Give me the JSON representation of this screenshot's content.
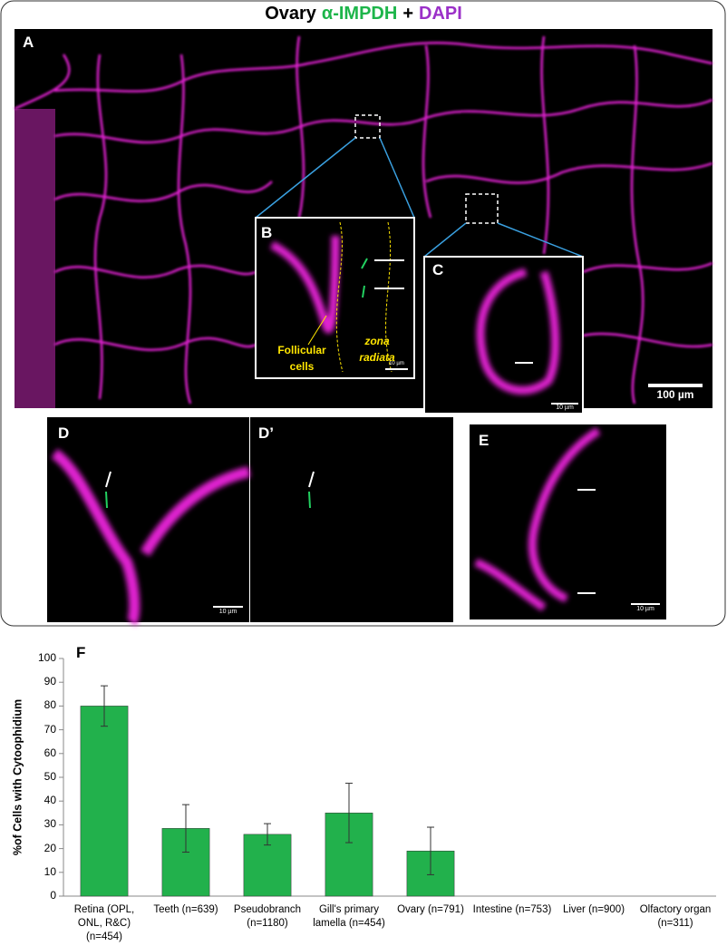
{
  "figure": {
    "title": {
      "parts": [
        "Ovary",
        "α-IMPDH",
        "+",
        "DAPI"
      ],
      "colors": [
        "#000000",
        "#1db54a",
        "#000000",
        "#9b30c8"
      ]
    },
    "panels": {
      "A": {
        "label": "A",
        "scale_bar": "100 µm"
      },
      "B": {
        "label": "B",
        "scale_bar": "10 µm"
      },
      "C": {
        "label": "C",
        "scale_bar": "10 µm"
      },
      "D": {
        "label": "D",
        "scale_bar": "10 µm"
      },
      "D2": {
        "label": "D’"
      },
      "E": {
        "label": "E",
        "scale_bar": "10 µm"
      },
      "F": {
        "label": "F"
      }
    },
    "annotations": {
      "follicular": "Follicular cells",
      "zona": "zona radiata"
    }
  },
  "chart_data": {
    "type": "bar",
    "y_label": "%of Cells with Cytoophidium",
    "categories": [
      "Retina (OPL, ONL, R&C) (n=454)",
      "Teeth (n=639)",
      "Pseudobranch (n=1180)",
      "Gill's primary lamella (n=454)",
      "Ovary (n=791)",
      "Intestine (n=753)",
      "Liver (n=900)",
      "Olfactory organ (n=311)"
    ],
    "values": [
      80,
      28.5,
      26,
      35,
      19,
      0,
      0,
      0
    ],
    "errors": [
      8.5,
      10,
      4.5,
      12.5,
      10,
      null,
      null,
      null
    ],
    "color": "#22b14c",
    "ylim": [
      0,
      100
    ],
    "yticks": [
      0,
      10,
      20,
      30,
      40,
      50,
      60,
      70,
      80,
      90,
      100
    ]
  }
}
